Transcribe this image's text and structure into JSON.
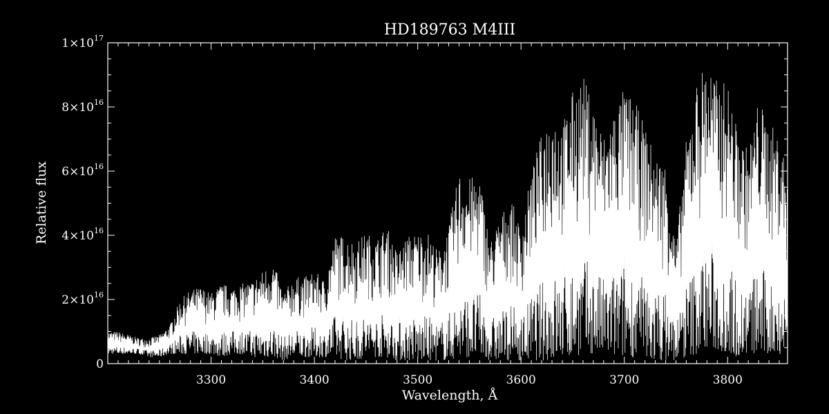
{
  "chart_data": {
    "type": "line",
    "title": "HD189763   M4III",
    "xlabel": "Wavelength, Å",
    "ylabel": "Relative flux",
    "xlim": [
      3200,
      3858
    ],
    "ylim": [
      0,
      1e+17
    ],
    "x_ticks": [
      {
        "value": 3300,
        "label": "3300"
      },
      {
        "value": 3400,
        "label": "3400"
      },
      {
        "value": 3500,
        "label": "3500"
      },
      {
        "value": 3600,
        "label": "3600"
      },
      {
        "value": 3700,
        "label": "3700"
      },
      {
        "value": 3800,
        "label": "3800"
      }
    ],
    "y_ticks": [
      {
        "value": 0,
        "mantissa": "0",
        "exponent": ""
      },
      {
        "value": 2e+16,
        "mantissa": "2×10",
        "exponent": "16"
      },
      {
        "value": 4e+16,
        "mantissa": "4×10",
        "exponent": "16"
      },
      {
        "value": 6e+16,
        "mantissa": "6×10",
        "exponent": "16"
      },
      {
        "value": 8e+16,
        "mantissa": "8×10",
        "exponent": "16"
      },
      {
        "value": 1e+17,
        "mantissa": "1×10",
        "exponent": "17"
      }
    ],
    "grid": false,
    "series": [
      {
        "color": "#ffffff",
        "envelope_step_A": 10,
        "envelope_x": [
          3200,
          3210,
          3220,
          3230,
          3240,
          3250,
          3260,
          3270,
          3280,
          3290,
          3300,
          3310,
          3320,
          3330,
          3340,
          3350,
          3360,
          3370,
          3380,
          3390,
          3400,
          3410,
          3420,
          3430,
          3440,
          3450,
          3460,
          3470,
          3480,
          3490,
          3500,
          3510,
          3520,
          3530,
          3540,
          3550,
          3560,
          3570,
          3580,
          3590,
          3600,
          3610,
          3620,
          3630,
          3640,
          3650,
          3660,
          3670,
          3680,
          3690,
          3700,
          3710,
          3720,
          3730,
          3740,
          3750,
          3760,
          3770,
          3780,
          3790,
          3800,
          3810,
          3820,
          3830,
          3840,
          3850,
          3858
        ],
        "envelope_max": [
          1e+16,
          1e+16,
          9000000000000000.0,
          8000000000000000.0,
          8000000000000000.0,
          9000000000000000.0,
          1.2e+16,
          2e+16,
          2.3e+16,
          2.4e+16,
          2.2e+16,
          2.5e+16,
          2.4e+16,
          2.5e+16,
          2.6e+16,
          2.9e+16,
          3.2e+16,
          2.2e+16,
          2.7e+16,
          2.7e+16,
          2.9e+16,
          2.6e+16,
          4e+16,
          4e+16,
          3.8e+16,
          4.1e+16,
          3.9e+16,
          4.3e+16,
          3.5e+16,
          4e+16,
          4.1e+16,
          4.1e+16,
          3.5e+16,
          4.3e+16,
          6e+16,
          5.8e+16,
          5.9e+16,
          3.8e+16,
          4.6e+16,
          5.2e+16,
          4.2e+16,
          6e+16,
          7.2e+16,
          8.1e+16,
          7.5e+16,
          8.5e+16,
          9e+16,
          8.2e+16,
          7.1e+16,
          8e+16,
          8.6e+16,
          8.2e+16,
          7.4e+16,
          6.5e+16,
          6.3e+16,
          3.7e+16,
          7e+16,
          8.8e+16,
          9.6e+16,
          8.8e+16,
          8.8e+16,
          7.2e+16,
          6.7e+16,
          8.3e+16,
          7.5e+16,
          7.2e+16,
          6e+16
        ],
        "envelope_min": [
          3000000000000000.0,
          3000000000000000.0,
          3000000000000000.0,
          3000000000000000.0,
          2000000000000000.0,
          2000000000000000.0,
          3000000000000000.0,
          3000000000000000.0,
          3000000000000000.0,
          3000000000000000.0,
          3000000000000000.0,
          2000000000000000.0,
          3000000000000000.0,
          3000000000000000.0,
          2000000000000000.0,
          2000000000000000.0,
          2000000000000000.0,
          1000000000000000.0,
          2000000000000000.0,
          2000000000000000.0,
          2000000000000000.0,
          2000000000000000.0,
          2000000000000000.0,
          1000000000000000.0,
          1000000000000000.0,
          2000000000000000.0,
          2000000000000000.0,
          2000000000000000.0,
          1000000000000000.0,
          1000000000000000.0,
          1000000000000000.0,
          1000000000000000.0,
          1000000000000000.0,
          1000000000000000.0,
          2000000000000000.0,
          2000000000000000.0,
          2000000000000000.0,
          1000000000000000.0,
          1000000000000000.0,
          1000000000000000.0,
          1000000000000000.0,
          1000000000000000.0,
          1000000000000000.0,
          1000000000000000.0,
          2000000000000000.0,
          2000000000000000.0,
          3000000000000000.0,
          3000000000000000.0,
          3000000000000000.0,
          2000000000000000.0,
          2000000000000000.0,
          2000000000000000.0,
          1000000000000000.0,
          1000000000000000.0,
          1000000000000000.0,
          1000000000000000.0,
          2000000000000000.0,
          3000000000000000.0,
          5000000000000000.0,
          4000000000000000.0,
          3000000000000000.0,
          2000000000000000.0,
          3000000000000000.0,
          3000000000000000.0,
          2000000000000000.0,
          3000000000000000.0,
          3000000000000000.0
        ]
      }
    ]
  }
}
